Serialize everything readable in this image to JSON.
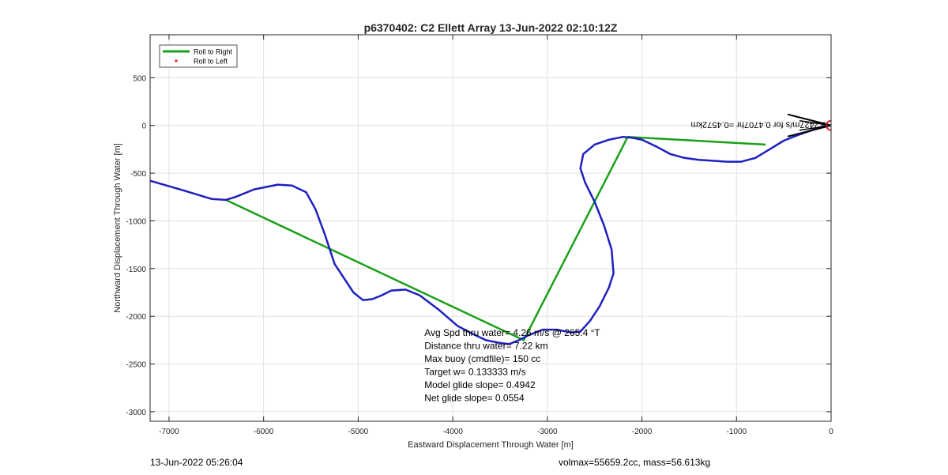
{
  "chart_data": {
    "type": "line",
    "title": "p6370402: C2 Ellett Array 13-Jun-2022 02:10:12Z",
    "xlabel": "Eastward Displacement Through Water [m]",
    "ylabel": "Northward Displacement Through Water [m]",
    "xlim": [
      -7200,
      0
    ],
    "ylim": [
      -3100,
      950
    ],
    "xticks": [
      -7000,
      -6000,
      -5000,
      -4000,
      -3000,
      -2000,
      -1000,
      0
    ],
    "yticks": [
      500,
      0,
      -500,
      -1000,
      -1500,
      -2000,
      -2500,
      -3000
    ],
    "grid": true,
    "legend_position": "top-left",
    "legend": [
      {
        "label": "Roll to Right",
        "color": "#1aa01a",
        "style": "line"
      },
      {
        "label": "Roll to Left",
        "color": "#e0202a",
        "style": "dot"
      }
    ],
    "series": [
      {
        "name": "Roll to Right",
        "color": "#1aa01a",
        "x": [
          -6400,
          -3250,
          -2150,
          -700
        ],
        "y": [
          -780,
          -2250,
          -120,
          -200
        ]
      },
      {
        "color": "#1f1fbf",
        "x": [
          -7200,
          -6850,
          -6550,
          -6400,
          -6300,
          -6100,
          -5850,
          -5700,
          -5550,
          -5450,
          -5350,
          -5250,
          -5150,
          -5050,
          -4950,
          -4850,
          -4750,
          -4650,
          -4500,
          -4350,
          -4150,
          -3950,
          -3800,
          -3650,
          -3500,
          -3400,
          -3300,
          -3200,
          -3050,
          -2900,
          -2750,
          -2650,
          -2550,
          -2450,
          -2350,
          -2300,
          -2320,
          -2400,
          -2500,
          -2600,
          -2650,
          -2620,
          -2500,
          -2350,
          -2200,
          -2100,
          -2000,
          -1850,
          -1700,
          -1550,
          -1400,
          -1250,
          -1100,
          -950,
          -800,
          -650,
          -500,
          -350,
          -200,
          -60
        ],
        "y": [
          -580,
          -680,
          -770,
          -780,
          -750,
          -670,
          -620,
          -630,
          -700,
          -880,
          -1150,
          -1450,
          -1600,
          -1750,
          -1830,
          -1820,
          -1780,
          -1730,
          -1720,
          -1780,
          -1930,
          -2100,
          -2180,
          -2250,
          -2280,
          -2290,
          -2250,
          -2200,
          -2140,
          -2140,
          -2170,
          -2160,
          -2050,
          -1900,
          -1700,
          -1550,
          -1300,
          -1050,
          -800,
          -600,
          -450,
          -300,
          -200,
          -150,
          -120,
          -130,
          -150,
          -220,
          -300,
          -340,
          -360,
          -370,
          -380,
          -380,
          -340,
          -250,
          -160,
          -100,
          -50,
          0
        ]
      }
    ],
    "text_annotations": [
      "Avg Spd thru water=  4.26 m/s @ 265.4 °T",
      "Distance thru water=  7.22 km",
      "Max buoy (cmdfile)= 150 cc",
      "Target w= 0.133333 m/s",
      "Model glide slope= 0.4942",
      "Net glide slope= 0.0554"
    ],
    "current_label": "0.2427m/s for 0.4707hr =0.4572km",
    "marker_point": {
      "x": 0,
      "y": 0
    }
  },
  "footer": {
    "timestamp": "13-Jun-2022 05:26:04",
    "stats": "volmax=55659.2cc, mass=56.613kg"
  }
}
